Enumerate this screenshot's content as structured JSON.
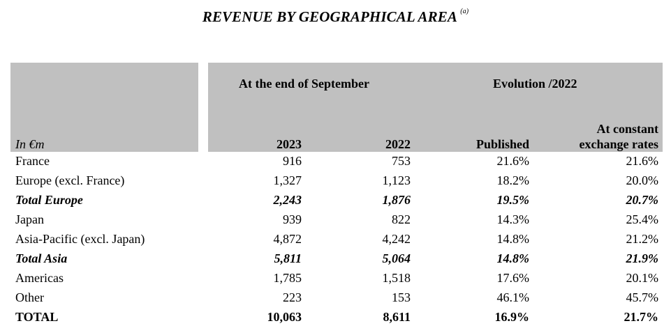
{
  "title": "REVENUE BY GEOGRAPHICAL AREA",
  "title_note": "(a)",
  "header": {
    "unit_label": "In €m",
    "group_period": "At the end of September",
    "group_evolution": "Evolution /2022",
    "col_2023": "2023",
    "col_2022": "2022",
    "col_published": "Published",
    "col_constant_line1": "At constant",
    "col_constant_line2": "exchange rates"
  },
  "rows": [
    {
      "label": "France",
      "v2023": "916",
      "v2022": "753",
      "published": "21.6%",
      "constant": "21.6%",
      "style": "normal"
    },
    {
      "label": "Europe (excl. France)",
      "v2023": "1,327",
      "v2022": "1,123",
      "published": "18.2%",
      "constant": "20.0%",
      "style": "normal"
    },
    {
      "label": "Total Europe",
      "v2023": "2,243",
      "v2022": "1,876",
      "published": "19.5%",
      "constant": "20.7%",
      "style": "subtotal"
    },
    {
      "label": "Japan",
      "v2023": "939",
      "v2022": "822",
      "published": "14.3%",
      "constant": "25.4%",
      "style": "normal"
    },
    {
      "label": "Asia-Pacific (excl. Japan)",
      "v2023": "4,872",
      "v2022": "4,242",
      "published": "14.8%",
      "constant": "21.2%",
      "style": "normal"
    },
    {
      "label": "Total Asia",
      "v2023": "5,811",
      "v2022": "5,064",
      "published": "14.8%",
      "constant": "21.9%",
      "style": "subtotal"
    },
    {
      "label": "Americas",
      "v2023": "1,785",
      "v2022": "1,518",
      "published": "17.6%",
      "constant": "20.1%",
      "style": "normal"
    },
    {
      "label": "Other",
      "v2023": "223",
      "v2022": "153",
      "published": "46.1%",
      "constant": "45.7%",
      "style": "normal"
    },
    {
      "label": "TOTAL",
      "v2023": "10,063",
      "v2022": "8,611",
      "published": "16.9%",
      "constant": "21.7%",
      "style": "total"
    }
  ]
}
